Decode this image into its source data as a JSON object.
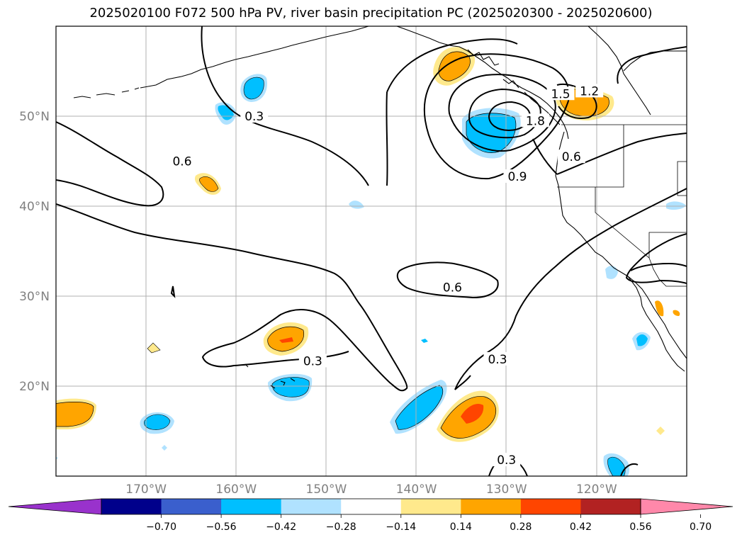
{
  "title": "2025020100 F072 500 hPa PV, river basin precipitation PC (2025020300 - 2025020600)",
  "map": {
    "projection": "plate-carree",
    "lon_range": [
      -180,
      -110
    ],
    "lat_range": [
      10,
      60
    ],
    "gridlines": true,
    "coastlines": true,
    "country_borders": true,
    "state_borders": true,
    "lon_ticks": [
      {
        "lon": -170,
        "label": "170°W"
      },
      {
        "lon": -160,
        "label": "160°W"
      },
      {
        "lon": -150,
        "label": "150°W"
      },
      {
        "lon": -140,
        "label": "140°W"
      },
      {
        "lon": -130,
        "label": "130°W"
      },
      {
        "lon": -120,
        "label": "120°W"
      }
    ],
    "lat_ticks": [
      {
        "lat": 20,
        "label": "20°N"
      },
      {
        "lat": 30,
        "label": "30°N"
      },
      {
        "lat": 40,
        "label": "40°N"
      },
      {
        "lat": 50,
        "label": "50°N"
      }
    ]
  },
  "pv_contour_labels": [
    {
      "text": "0.3",
      "lon": -158.0,
      "lat": 50.0
    },
    {
      "text": "0.6",
      "lon": -166.0,
      "lat": 45.0
    },
    {
      "text": "0.6",
      "lon": -136.0,
      "lat": 31.0
    },
    {
      "text": "0.3",
      "lon": -151.5,
      "lat": 22.8
    },
    {
      "text": "0.3",
      "lon": -131.0,
      "lat": 23.0
    },
    {
      "text": "0.3",
      "lon": -130.0,
      "lat": 11.8
    },
    {
      "text": "0.9",
      "lon": -128.8,
      "lat": 43.3
    },
    {
      "text": "0.6",
      "lon": -122.8,
      "lat": 45.5
    },
    {
      "text": "1.5",
      "lon": -124.0,
      "lat": 52.5
    },
    {
      "text": "1.8",
      "lon": -126.8,
      "lat": 49.5
    },
    {
      "text": "1.2",
      "lon": -120.8,
      "lat": 52.8
    }
  ],
  "colorbar": {
    "colors": [
      "#9932cc",
      "#00008b",
      "#3a5fcd",
      "#00bfff",
      "#b0e2ff",
      "#ffffff",
      "#ffe98c",
      "#ffa500",
      "#ff4500",
      "#b22222",
      "#ff88aa"
    ],
    "tick_labels": [
      "−0.70",
      "−0.56",
      "−0.42",
      "−0.28",
      "−0.14",
      "0.14",
      "0.28",
      "0.42",
      "0.56",
      "0.70"
    ],
    "extend": "both"
  },
  "colors": {
    "positive_light": "#ffe98c",
    "positive_mid": "#ffa500",
    "positive_high": "#ff4500",
    "negative_light": "#b0e2ff",
    "negative_mid": "#00bfff",
    "grid": "#b0b0b0",
    "contour": "#000000"
  }
}
